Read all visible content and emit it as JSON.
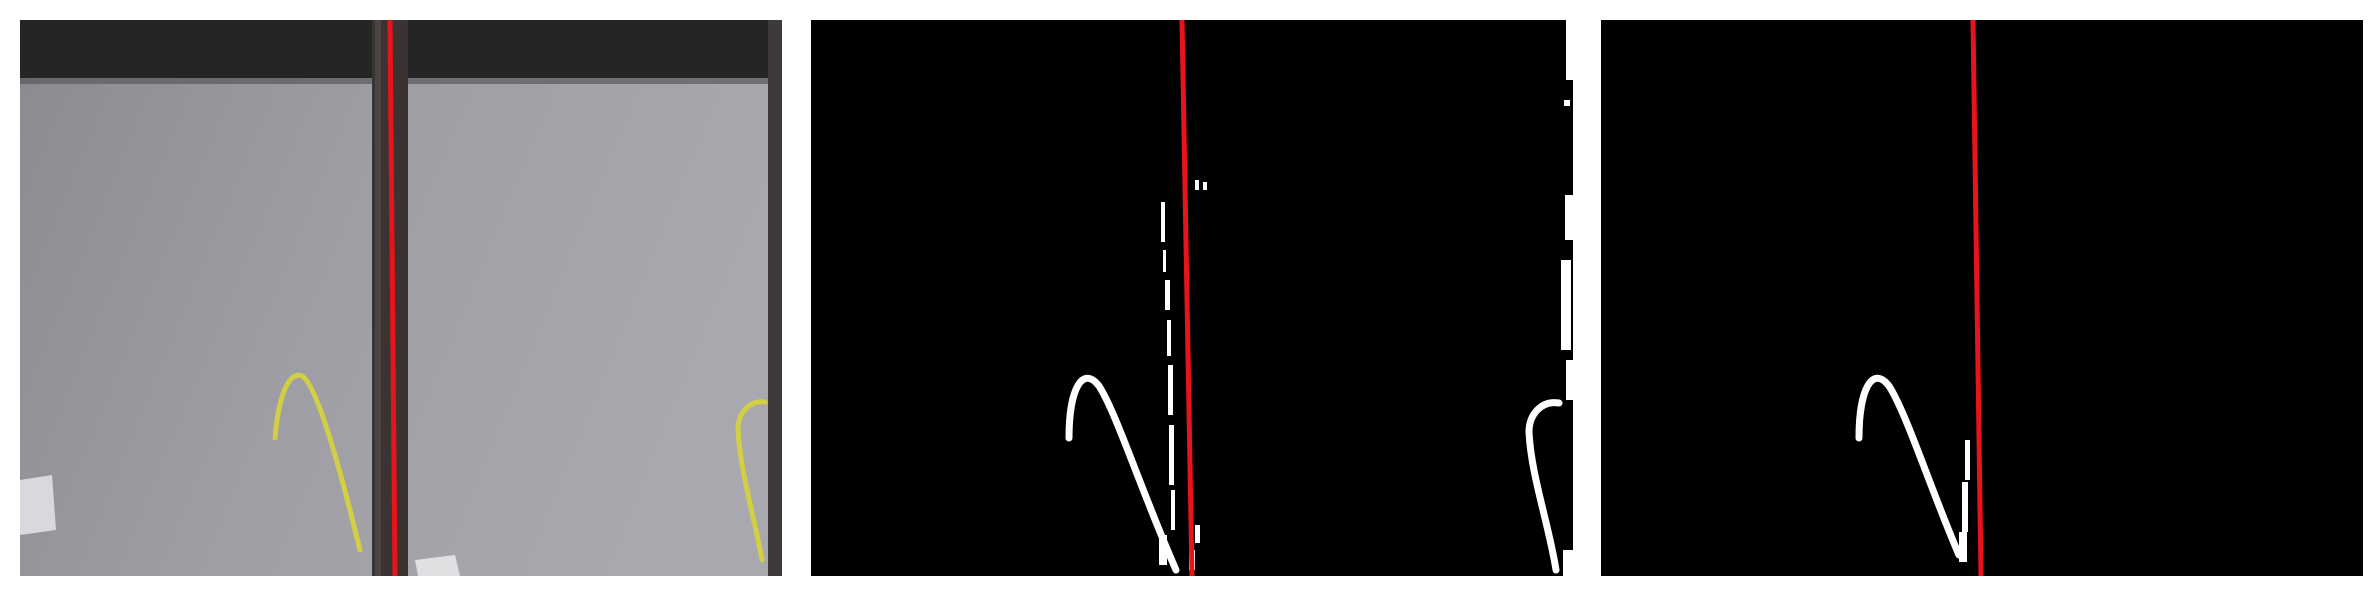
{
  "figure": {
    "panels": [
      {
        "name": "original-photo"
      },
      {
        "name": "binary-mask"
      },
      {
        "name": "filtered-mask"
      }
    ]
  },
  "colors": {
    "reference_line": "#e8141c",
    "background_top": "#2a2929",
    "background_gray": "#9b9ba1",
    "pole": "#3a3433",
    "sprout": "#d6d34a",
    "mask_fg": "#ffffff",
    "mask_bg": "#000000"
  }
}
